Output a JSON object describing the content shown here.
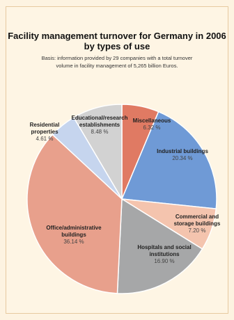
{
  "header": {
    "title_line1": "Facility management turnover for Germany in 2006",
    "title_line2": "by types of use",
    "subtitle_line1": "Basis: information provided by 29 companies with a total turnover",
    "subtitle_line2": "volume in facility management of 5,265 billion Euros."
  },
  "chart_data": {
    "type": "pie",
    "title": "Facility management turnover for Germany in 2006 by types of use",
    "slices": [
      {
        "label_lines": [
          "Miscellaneous"
        ],
        "value": 6.32,
        "value_text": "6.32 %",
        "color": "#e07a63"
      },
      {
        "label_lines": [
          "Industrial buildings"
        ],
        "value": 20.34,
        "value_text": "20.34 %",
        "color": "#6f9ad6"
      },
      {
        "label_lines": [
          "Commercial and",
          "storage buildings"
        ],
        "value": 7.2,
        "value_text": "7.20 %",
        "color": "#f4c4ae"
      },
      {
        "label_lines": [
          "Hospitals and social",
          "institutions"
        ],
        "value": 16.9,
        "value_text": "16.90 %",
        "color": "#a6a7a8"
      },
      {
        "label_lines": [
          "Office/administrative",
          "buildings"
        ],
        "value": 36.14,
        "value_text": "36.14 %",
        "color": "#e8a08c"
      },
      {
        "label_lines": [
          "Residential",
          "properties"
        ],
        "value": 4.61,
        "value_text": "4.61 %",
        "color": "#c6d5ee"
      },
      {
        "label_lines": [
          "Educational/research",
          "establishments"
        ],
        "value": 8.48,
        "value_text": "8.48 %",
        "color": "#d2d2d2"
      }
    ]
  }
}
